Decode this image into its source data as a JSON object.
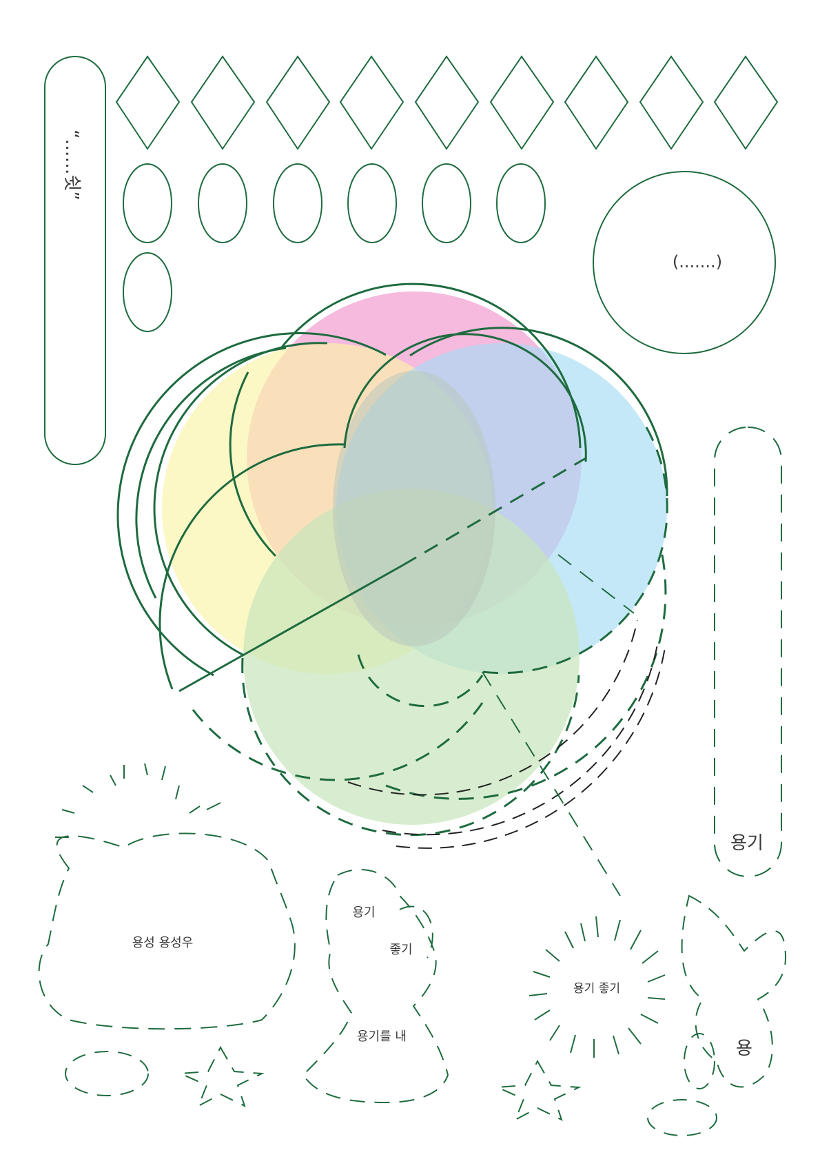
{
  "labels": {
    "pill_text": "“……쉿”",
    "circle_text": "(.......)",
    "dashed_pill_text": "용기",
    "cloud_text": "용성 용성우",
    "shape_top_text": "용기",
    "shape_mid_text": "좋기",
    "shape_bottom_text": "용기를 내",
    "sun_text": "용기 좋기",
    "right_small_text": "용"
  },
  "colors": {
    "stroke": "#1e6b3f",
    "dashed_black": "#222222",
    "text": "#3a3a3a",
    "fill_pink": "#f2a3d3",
    "fill_yellow": "#fbf5a8",
    "fill_blue": "#a6dcf4",
    "fill_green": "#c8e6bb",
    "fill_orange": "#f5bfa0",
    "fill_purple": "#b6b6e8",
    "fill_center": "#b9c7bb"
  }
}
